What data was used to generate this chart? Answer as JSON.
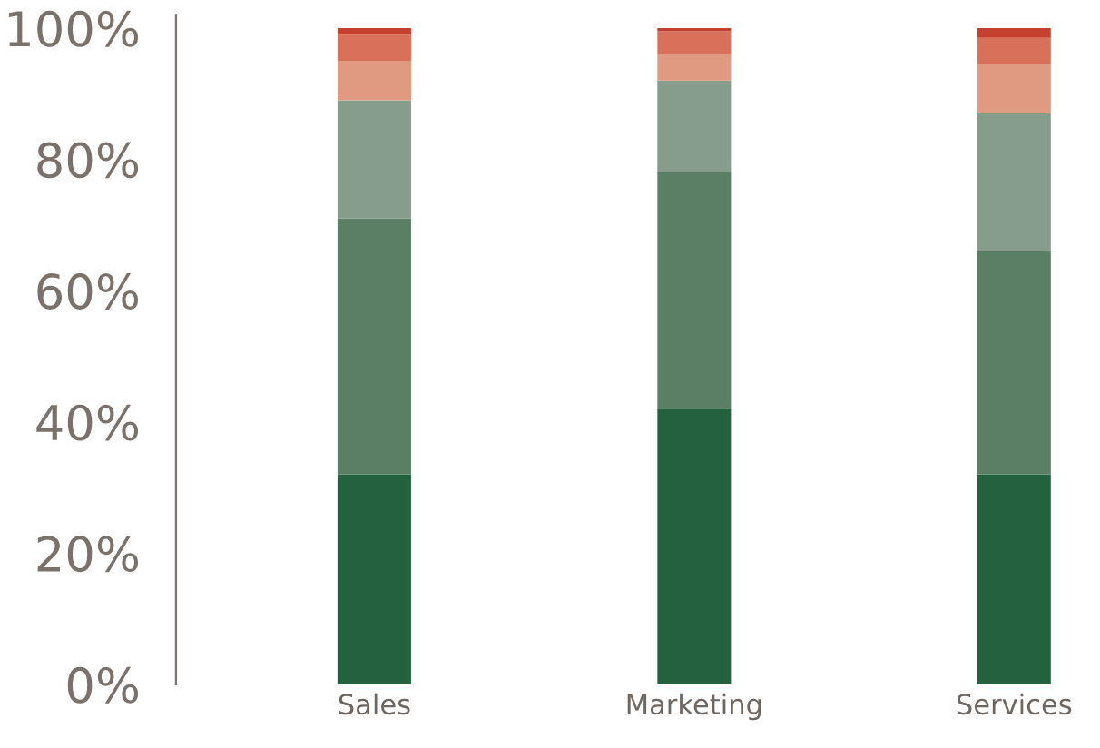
{
  "chart_data": {
    "type": "bar",
    "stacked": true,
    "categories": [
      "Sales",
      "Marketing",
      "Services"
    ],
    "series": [
      {
        "color": "#24623f",
        "values": [
          32,
          42,
          32
        ]
      },
      {
        "color": "#5a7f65",
        "values": [
          39,
          36,
          34
        ]
      },
      {
        "color": "#869d8b",
        "values": [
          18,
          14,
          21
        ]
      },
      {
        "color": "#e09a82",
        "values": [
          6,
          4,
          7.5
        ]
      },
      {
        "color": "#d8705a",
        "values": [
          4,
          3.5,
          4
        ]
      },
      {
        "color": "#c5412f",
        "values": [
          1,
          0.5,
          1.5
        ]
      }
    ],
    "ylim": [
      0,
      102
    ],
    "yticks": [
      {
        "value": 0,
        "label": "0%"
      },
      {
        "value": 20,
        "label": "20%"
      },
      {
        "value": 40,
        "label": "40%"
      },
      {
        "value": 60,
        "label": "60%"
      },
      {
        "value": 80,
        "label": "80%"
      },
      {
        "value": 100,
        "label": "100%"
      }
    ],
    "grid": false,
    "legend": false
  }
}
